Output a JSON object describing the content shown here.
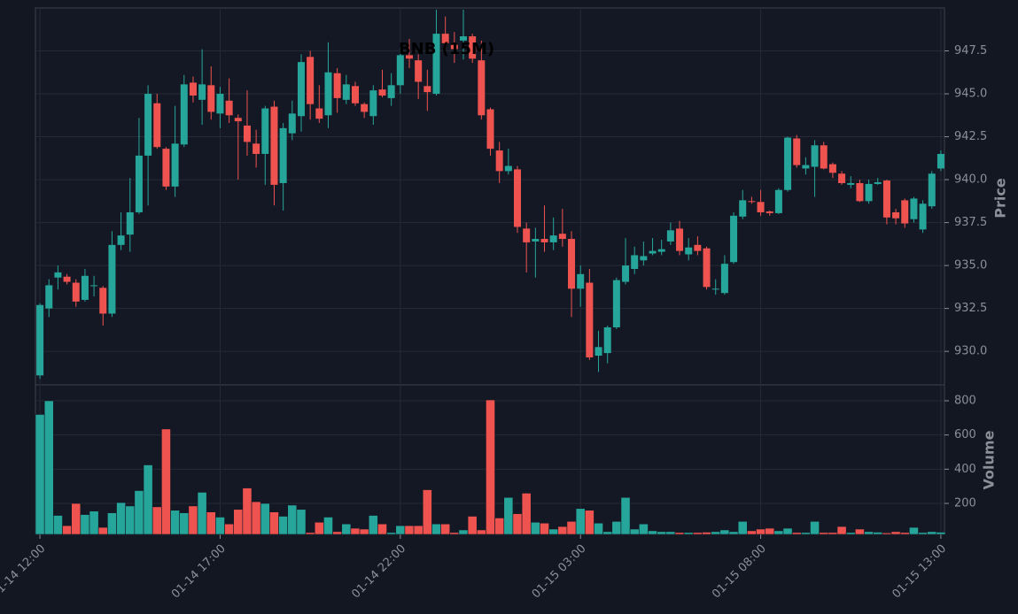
{
  "chart_data": [
    {
      "type": "candlestick",
      "title": "BNB (15M)",
      "ylabel": "Price",
      "up_color": "#26a69a",
      "down_color": "#ef5350",
      "ylim": [
        928.05,
        950.0
      ],
      "yticks": [
        {
          "value": 930,
          "label": "930.0"
        },
        {
          "value": 932.5,
          "label": "932.5"
        },
        {
          "value": 935,
          "label": "935.0"
        },
        {
          "value": 937.5,
          "label": "937.5"
        },
        {
          "value": 940,
          "label": "940.0"
        },
        {
          "value": 942.5,
          "label": "942.5"
        },
        {
          "value": 945,
          "label": "945.0"
        },
        {
          "value": 947.5,
          "label": "947.5"
        }
      ],
      "grid": true,
      "open": [
        928.6,
        932.5,
        934.3,
        934.35,
        934.0,
        933.0,
        933.8,
        933.7,
        932.2,
        936.2,
        936.8,
        938.1,
        941.4,
        944.45,
        941.8,
        939.6,
        942.05,
        945.65,
        944.65,
        945.5,
        943.85,
        944.6,
        943.6,
        943.15,
        942.1,
        941.5,
        944.25,
        939.8,
        942.7,
        943.7,
        947.15,
        944.15,
        943.75,
        946.2,
        944.65,
        945.45,
        944.4,
        943.7,
        945.25,
        944.75,
        945.5,
        947.25,
        946.95,
        945.45,
        945.0,
        948.5,
        947.85,
        948.1,
        948.35,
        946.95,
        944.1,
        941.7,
        940.5,
        940.6,
        937.15,
        936.4,
        936.55,
        936.35,
        936.85,
        936.55,
        933.65,
        934.0,
        929.75,
        929.9,
        931.4,
        934.05,
        934.8,
        935.3,
        935.7,
        935.8,
        936.4,
        937.15,
        935.65,
        936.2,
        936.0,
        933.6,
        933.4,
        935.2,
        937.85,
        938.75,
        938.7,
        938.15,
        938.05,
        939.4,
        942.4,
        940.65,
        940.75,
        942.0,
        940.9,
        940.35,
        939.7,
        939.8,
        938.75,
        939.75,
        939.95,
        938.1,
        938.8,
        937.7,
        937.1,
        938.45,
        940.65
      ],
      "high": [
        932.8,
        934.2,
        935.0,
        934.5,
        934.2,
        934.8,
        934.4,
        933.8,
        937.0,
        938.1,
        940.1,
        943.6,
        945.5,
        945.0,
        941.9,
        944.3,
        946.1,
        946.0,
        947.6,
        946.6,
        945.4,
        945.9,
        943.8,
        945.2,
        942.9,
        944.3,
        944.6,
        943.3,
        944.6,
        947.3,
        947.5,
        945.5,
        948.0,
        946.5,
        946.1,
        945.7,
        944.5,
        945.5,
        946.4,
        946.2,
        947.7,
        948.2,
        947.3,
        946.4,
        949.9,
        949.5,
        948.6,
        949.9,
        948.5,
        948.1,
        944.2,
        942.2,
        941.8,
        940.8,
        937.5,
        937.2,
        938.5,
        937.8,
        938.3,
        937.0,
        935.0,
        934.8,
        931.2,
        931.5,
        934.3,
        936.6,
        936.1,
        936.4,
        936.6,
        936.5,
        937.5,
        937.6,
        936.6,
        936.7,
        936.1,
        934.2,
        935.6,
        938.1,
        939.4,
        939.0,
        939.4,
        938.2,
        939.5,
        942.5,
        942.6,
        941.3,
        942.3,
        942.2,
        941.0,
        940.5,
        940.2,
        940.0,
        940.0,
        940.1,
        940.0,
        938.3,
        938.9,
        939.0,
        938.8,
        940.5,
        941.7
      ],
      "low": [
        928.4,
        932.0,
        933.6,
        933.9,
        932.6,
        932.9,
        933.2,
        931.5,
        932.0,
        935.9,
        935.8,
        938.0,
        938.5,
        941.8,
        939.4,
        939.0,
        941.9,
        944.5,
        943.2,
        943.5,
        943.0,
        943.3,
        940.0,
        941.4,
        940.7,
        939.7,
        938.5,
        938.2,
        942.3,
        942.8,
        943.5,
        943.3,
        943.0,
        943.9,
        944.4,
        944.3,
        943.6,
        943.2,
        944.8,
        944.3,
        945.0,
        946.5,
        944.7,
        944.0,
        944.9,
        947.3,
        946.8,
        947.0,
        946.8,
        943.5,
        941.4,
        939.8,
        940.3,
        936.9,
        934.6,
        934.3,
        935.8,
        935.9,
        936.1,
        932.0,
        932.6,
        929.5,
        928.8,
        929.3,
        931.3,
        933.9,
        934.5,
        935.0,
        935.6,
        935.6,
        936.2,
        935.6,
        935.3,
        935.6,
        933.6,
        933.3,
        933.3,
        935.1,
        937.7,
        938.6,
        937.9,
        937.9,
        938.0,
        939.3,
        940.7,
        940.3,
        939.0,
        940.6,
        940.1,
        939.7,
        939.5,
        938.7,
        938.6,
        939.7,
        937.4,
        937.4,
        937.2,
        937.5,
        936.9,
        938.3,
        940.5
      ],
      "close": [
        932.7,
        933.85,
        934.6,
        934.05,
        932.9,
        934.4,
        933.85,
        932.2,
        936.2,
        936.75,
        938.1,
        941.4,
        945.0,
        941.9,
        939.6,
        942.1,
        945.55,
        944.9,
        945.55,
        943.95,
        945.0,
        943.75,
        943.4,
        942.2,
        941.5,
        944.15,
        939.7,
        943.0,
        943.85,
        946.85,
        944.4,
        943.55,
        946.25,
        944.75,
        945.55,
        944.45,
        943.95,
        945.2,
        944.9,
        945.5,
        947.25,
        947.05,
        945.7,
        945.1,
        948.5,
        947.95,
        947.6,
        948.35,
        947.05,
        943.75,
        941.8,
        940.5,
        940.8,
        937.25,
        936.35,
        936.55,
        936.35,
        936.75,
        936.55,
        933.65,
        934.5,
        929.65,
        930.25,
        931.4,
        934.15,
        935.0,
        935.6,
        935.55,
        935.85,
        935.95,
        937.05,
        935.85,
        936.05,
        935.85,
        933.75,
        933.65,
        935.1,
        937.9,
        938.8,
        938.7,
        938.1,
        938.05,
        939.4,
        942.45,
        940.85,
        940.85,
        942.0,
        940.65,
        940.4,
        939.8,
        939.8,
        938.75,
        939.75,
        939.85,
        937.8,
        937.75,
        937.45,
        938.9,
        938.6,
        940.35,
        941.5
      ]
    },
    {
      "type": "bar",
      "ylabel": "Volume",
      "ylim": [
        19,
        893
      ],
      "yticks": [
        200,
        400,
        600,
        800
      ],
      "grid": true,
      "xlim": [
        -0.5,
        100.4
      ],
      "xticks": [
        {
          "value": 0,
          "label": "01-14 12:00"
        },
        {
          "value": 20,
          "label": "01-14 17:00"
        },
        {
          "value": 40,
          "label": "01-14 22:00"
        },
        {
          "value": 60,
          "label": "01-15 03:00"
        },
        {
          "value": 80,
          "label": "01-15 08:00"
        },
        {
          "value": 100,
          "label": "01-15 13:00"
        }
      ],
      "values": [
        720,
        800,
        130,
        70,
        200,
        135,
        155,
        60,
        145,
        205,
        185,
        275,
        425,
        180,
        635,
        160,
        145,
        185,
        265,
        150,
        120,
        80,
        165,
        290,
        210,
        200,
        150,
        125,
        190,
        165,
        30,
        90,
        120,
        35,
        80,
        55,
        50,
        130,
        80,
        30,
        70,
        70,
        70,
        280,
        80,
        80,
        30,
        45,
        125,
        45,
        805,
        115,
        235,
        140,
        260,
        90,
        85,
        50,
        65,
        95,
        170,
        160,
        85,
        35,
        95,
        235,
        50,
        80,
        40,
        35,
        35,
        30,
        30,
        30,
        32,
        35,
        45,
        35,
        95,
        40,
        50,
        55,
        40,
        55,
        30,
        30,
        95,
        30,
        30,
        65,
        30,
        50,
        35,
        32,
        28,
        35,
        30,
        60,
        30,
        35,
        32
      ]
    }
  ]
}
